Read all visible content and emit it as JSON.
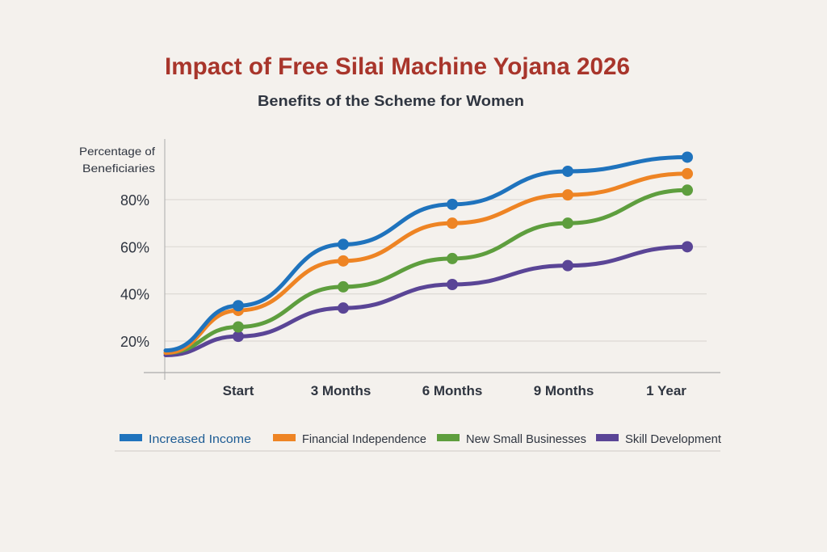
{
  "chart_data": {
    "type": "line",
    "title": "Impact of Free Silai Machine Yojana 2026",
    "subtitle": "Benefits of the Scheme for Women",
    "ylabel_line1": "Percentage of",
    "ylabel_line2": "Beneficiaries",
    "xlabel": "",
    "categories": [
      "Start",
      "3 Months",
      "6 Months",
      "9 Months",
      "1 Year"
    ],
    "y_ticks": [
      "20%",
      "40%",
      "60%",
      "80%"
    ],
    "y_tick_values": [
      20,
      40,
      60,
      80
    ],
    "ylim": [
      7,
      106
    ],
    "grid": true,
    "legend_position": "bottom",
    "series": [
      {
        "name": "Increased Income",
        "color": "#1f73bd",
        "origin_value": 16,
        "values": [
          35,
          61,
          78,
          92,
          98
        ]
      },
      {
        "name": "Financial Independence",
        "color": "#ee8424",
        "origin_value": 15,
        "values": [
          33,
          54,
          70,
          82,
          91
        ]
      },
      {
        "name": "New Small Businesses",
        "color": "#5e9e3e",
        "origin_value": 15,
        "values": [
          26,
          43,
          55,
          70,
          84
        ]
      },
      {
        "name": "Skill Development",
        "color": "#5a4596",
        "origin_value": 14,
        "values": [
          22,
          34,
          44,
          52,
          60
        ]
      }
    ],
    "colors": {
      "title": "#a8352b",
      "text": "#2f3540",
      "background": "#f4f1ed"
    }
  }
}
